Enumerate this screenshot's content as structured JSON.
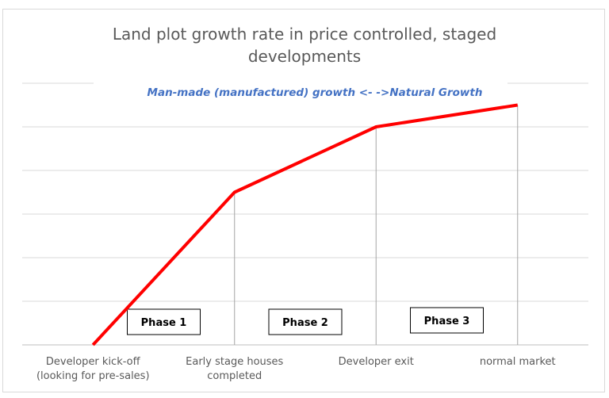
{
  "chart_data": {
    "type": "line",
    "title": "Land plot growth rate in price controlled, staged developments",
    "title_lines": [
      "Land plot growth rate in price controlled, staged",
      "developments"
    ],
    "annotation": "Man-made (manufactured) growth <-   ->Natural Growth",
    "categories": [
      [
        "Developer kick-off",
        "(looking for pre-sales)"
      ],
      [
        "Early stage houses",
        "completed"
      ],
      [
        "Developer exit"
      ],
      [
        "normal market"
      ]
    ],
    "values": [
      0,
      3.5,
      5.0,
      5.5
    ],
    "ylim": [
      0,
      6
    ],
    "grid": true,
    "legend": "none",
    "line_color": "#ff0000",
    "phases": [
      {
        "label": "Phase 1",
        "between": [
          0,
          1
        ]
      },
      {
        "label": "Phase 2",
        "between": [
          1,
          2
        ]
      },
      {
        "label": "Phase 3",
        "between": [
          2,
          3
        ]
      }
    ],
    "drop_lines": true
  }
}
